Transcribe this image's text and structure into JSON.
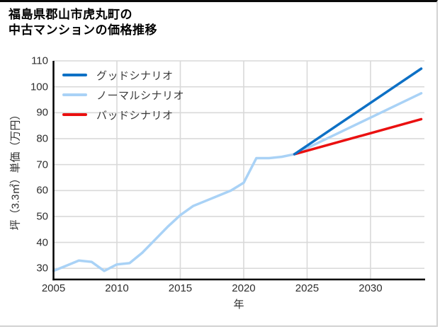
{
  "title_lines": [
    "福島県郡山市虎丸町の",
    "中古マンションの価格推移"
  ],
  "chart_data": {
    "type": "line",
    "title": "福島県郡山市虎丸町の中古マンションの価格推移",
    "xlabel": "年",
    "ylabel": "坪（3.3㎡）単価（万円）",
    "xlim": [
      2005,
      2034.25
    ],
    "ylim": [
      25.7,
      110
    ],
    "xticks": [
      2005,
      2010,
      2015,
      2020,
      2025,
      2030
    ],
    "yticks": [
      30,
      40,
      50,
      60,
      70,
      80,
      90,
      100,
      110
    ],
    "grid": true,
    "legend_position": "top-left-inside",
    "colors": {
      "grid": "#d9d9d9",
      "axis": "#000000",
      "tick_label": "#2e2e2e"
    },
    "series": [
      {
        "name": "グッドシナリオ",
        "color": "#0d70c5",
        "x": [
          2024,
          2034
        ],
        "values": [
          74,
          107
        ]
      },
      {
        "name": "ノーマルシナリオ",
        "color": "#a9d2f6",
        "x": [
          2005,
          2006,
          2007,
          2008,
          2009,
          2010,
          2011,
          2012,
          2013,
          2014,
          2015,
          2016,
          2017,
          2018,
          2019,
          2020,
          2021,
          2022,
          2023,
          2024,
          2034
        ],
        "values": [
          29,
          31,
          33,
          32.5,
          29,
          31.5,
          32,
          36,
          41,
          46,
          50.5,
          54,
          56,
          58,
          60,
          63,
          72.5,
          72.5,
          73,
          74,
          97.5
        ]
      },
      {
        "name": "バッドシナリオ",
        "color": "#ea1010",
        "x": [
          2024,
          2034
        ],
        "values": [
          74,
          87.5
        ]
      }
    ]
  }
}
